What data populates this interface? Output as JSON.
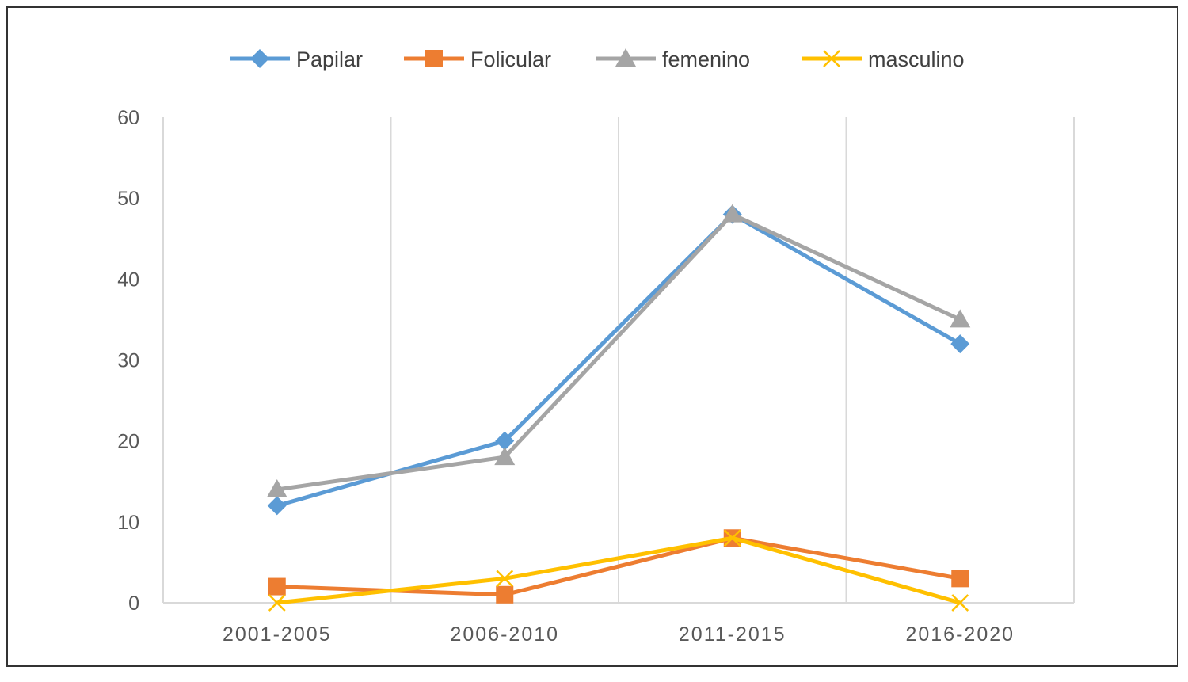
{
  "chart_data": {
    "type": "line",
    "categories": [
      "2001-2005",
      "2006-2010",
      "2011-2015",
      "2016-2020"
    ],
    "series": [
      {
        "name": "Papilar",
        "values": [
          12,
          20,
          48,
          32
        ],
        "color": "#5B9BD5",
        "marker": "diamond"
      },
      {
        "name": "Folicular",
        "values": [
          2,
          1,
          8,
          3
        ],
        "color": "#ED7D31",
        "marker": "square"
      },
      {
        "name": "femenino",
        "values": [
          14,
          18,
          48,
          35
        ],
        "color": "#A5A5A5",
        "marker": "triangle"
      },
      {
        "name": "masculino",
        "values": [
          0,
          3,
          8,
          0
        ],
        "color": "#FFC000",
        "marker": "x"
      }
    ],
    "y_ticks": [
      "0",
      "10",
      "20",
      "30",
      "40",
      "50",
      "60"
    ],
    "ylim": [
      0,
      60
    ],
    "grid": "vertical",
    "legend_position": "top"
  }
}
